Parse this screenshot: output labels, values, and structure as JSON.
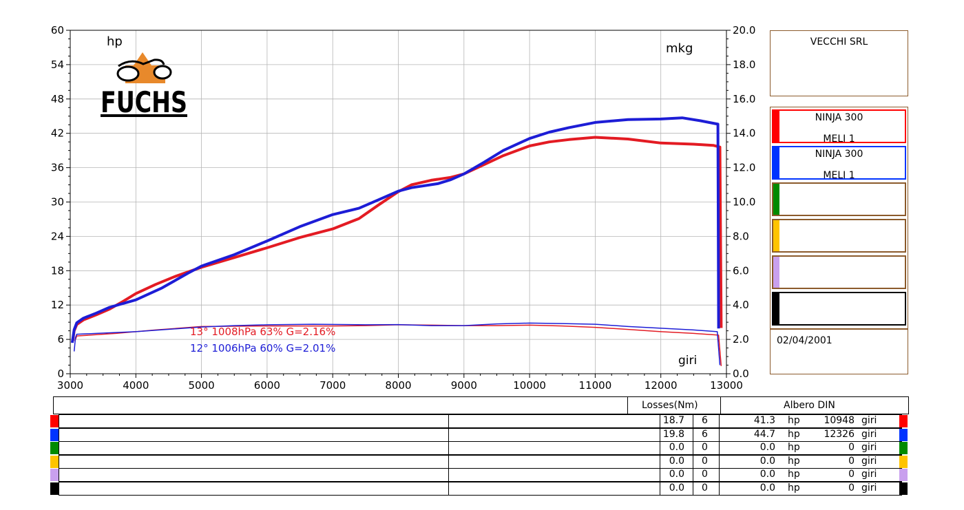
{
  "chart_data": {
    "type": "line",
    "x_range": [
      3000,
      13000
    ],
    "y_left_range": [
      0,
      60
    ],
    "y_right_range": [
      0,
      20
    ],
    "x_ticks": [
      "3000",
      "4000",
      "5000",
      "6000",
      "7000",
      "8000",
      "9000",
      "10000",
      "11000",
      "12000",
      "13000"
    ],
    "y_left_ticks": [
      "0",
      "6",
      "12",
      "18",
      "24",
      "30",
      "36",
      "42",
      "48",
      "54",
      "60"
    ],
    "y_right_ticks": [
      "0.0",
      "2.0",
      "4.0",
      "6.0",
      "8.0",
      "10.0",
      "12.0",
      "14.0",
      "16.0",
      "18.0",
      "20.0"
    ],
    "ylabel_left": "hp",
    "ylabel_right": "mkg",
    "xlabel": "giri",
    "grid": true,
    "series": [
      {
        "color": "#e31b23",
        "kind": "power",
        "points": [
          [
            3040,
            5.8
          ],
          [
            3060,
            7.5
          ],
          [
            3100,
            8.6
          ],
          [
            3200,
            9.4
          ],
          [
            3400,
            10.3
          ],
          [
            3600,
            11.3
          ],
          [
            3800,
            12.6
          ],
          [
            4000,
            14.0
          ],
          [
            4300,
            15.6
          ],
          [
            4600,
            17.0
          ],
          [
            5000,
            18.6
          ],
          [
            5500,
            20.3
          ],
          [
            6000,
            22.0
          ],
          [
            6500,
            23.8
          ],
          [
            7000,
            25.3
          ],
          [
            7400,
            27.1
          ],
          [
            7700,
            29.5
          ],
          [
            8000,
            31.8
          ],
          [
            8200,
            33.0
          ],
          [
            8500,
            33.8
          ],
          [
            8800,
            34.3
          ],
          [
            9000,
            34.9
          ],
          [
            9300,
            36.5
          ],
          [
            9600,
            38.1
          ],
          [
            10000,
            39.8
          ],
          [
            10300,
            40.5
          ],
          [
            10600,
            40.9
          ],
          [
            11000,
            41.3
          ],
          [
            11500,
            41.0
          ],
          [
            12000,
            40.3
          ],
          [
            12500,
            40.1
          ],
          [
            12800,
            39.9
          ],
          [
            12900,
            39.6
          ],
          [
            12920,
            8.0
          ]
        ]
      },
      {
        "color": "#1d1dd6",
        "kind": "power",
        "points": [
          [
            3030,
            5.4
          ],
          [
            3060,
            7.7
          ],
          [
            3100,
            8.9
          ],
          [
            3200,
            9.7
          ],
          [
            3400,
            10.6
          ],
          [
            3600,
            11.6
          ],
          [
            4000,
            12.9
          ],
          [
            4400,
            15.0
          ],
          [
            4800,
            17.6
          ],
          [
            5000,
            18.8
          ],
          [
            5500,
            20.8
          ],
          [
            6000,
            23.2
          ],
          [
            6500,
            25.7
          ],
          [
            7000,
            27.8
          ],
          [
            7400,
            28.9
          ],
          [
            7700,
            30.4
          ],
          [
            8000,
            31.9
          ],
          [
            8200,
            32.5
          ],
          [
            8600,
            33.2
          ],
          [
            8800,
            33.9
          ],
          [
            9000,
            34.9
          ],
          [
            9300,
            36.9
          ],
          [
            9600,
            39.0
          ],
          [
            10000,
            41.1
          ],
          [
            10300,
            42.2
          ],
          [
            10600,
            43.0
          ],
          [
            11000,
            43.9
          ],
          [
            11500,
            44.4
          ],
          [
            12000,
            44.5
          ],
          [
            12326,
            44.7
          ],
          [
            12600,
            44.2
          ],
          [
            12870,
            43.6
          ],
          [
            12880,
            7.9
          ]
        ]
      },
      {
        "color": "#e31b23",
        "kind": "torque",
        "points": [
          [
            3070,
            1.9
          ],
          [
            3100,
            2.2
          ],
          [
            3300,
            2.25
          ],
          [
            3700,
            2.35
          ],
          [
            4300,
            2.55
          ],
          [
            5000,
            2.75
          ],
          [
            6000,
            2.78
          ],
          [
            7000,
            2.78
          ],
          [
            7500,
            2.8
          ],
          [
            8000,
            2.85
          ],
          [
            8500,
            2.83
          ],
          [
            9000,
            2.8
          ],
          [
            9500,
            2.8
          ],
          [
            10000,
            2.83
          ],
          [
            10500,
            2.78
          ],
          [
            11000,
            2.7
          ],
          [
            11500,
            2.58
          ],
          [
            12000,
            2.45
          ],
          [
            12500,
            2.35
          ],
          [
            12880,
            2.25
          ],
          [
            12920,
            0.45
          ]
        ]
      },
      {
        "color": "#1d1dd6",
        "kind": "torque",
        "points": [
          [
            3060,
            1.3
          ],
          [
            3080,
            2.1
          ],
          [
            3100,
            2.3
          ],
          [
            3400,
            2.35
          ],
          [
            4000,
            2.45
          ],
          [
            5000,
            2.72
          ],
          [
            5500,
            2.8
          ],
          [
            6000,
            2.85
          ],
          [
            6700,
            2.88
          ],
          [
            7500,
            2.85
          ],
          [
            8000,
            2.86
          ],
          [
            8500,
            2.8
          ],
          [
            9000,
            2.8
          ],
          [
            9500,
            2.9
          ],
          [
            10000,
            2.95
          ],
          [
            10500,
            2.92
          ],
          [
            11000,
            2.88
          ],
          [
            11500,
            2.75
          ],
          [
            12000,
            2.65
          ],
          [
            12500,
            2.55
          ],
          [
            12860,
            2.45
          ],
          [
            12900,
            0.5
          ]
        ]
      }
    ],
    "annotations": [
      {
        "text": "13°  1008hPa  63%    G=2.16%",
        "color": "#e31b23"
      },
      {
        "text": "12°  1006hPa  60%    G=2.01%",
        "color": "#1d1dd6"
      }
    ]
  },
  "logo": {
    "text": "FUCHS"
  },
  "side_panel": {
    "company": "VECCHI SRL",
    "date": "02/04/2001",
    "legend": [
      {
        "color": "#ff0000",
        "line1": "NINJA 300",
        "line2": "MELI 1"
      },
      {
        "color": "#0033ff",
        "line1": "NINJA 300",
        "line2": "MELI 1"
      },
      {
        "color": "#008a00",
        "line1": "",
        "line2": ""
      },
      {
        "color": "#ffc400",
        "line1": "",
        "line2": ""
      },
      {
        "color": "#c9a0ee",
        "line1": "",
        "line2": ""
      },
      {
        "color": "#000000",
        "line1": "",
        "line2": ""
      }
    ]
  },
  "table": {
    "losses_header": "Losses(Nm)",
    "albero_header": "Albero DIN",
    "rows": [
      {
        "color": "#ff0000",
        "loss": "18.7",
        "n": "6",
        "hp": "41.3",
        "hp_unit": "hp",
        "rpm": "10948",
        "rpm_unit": "giri"
      },
      {
        "color": "#0033ff",
        "loss": "19.8",
        "n": "6",
        "hp": "44.7",
        "hp_unit": "hp",
        "rpm": "12326",
        "rpm_unit": "giri"
      },
      {
        "color": "#008a00",
        "loss": "0.0",
        "n": "0",
        "hp": "0.0",
        "hp_unit": "hp",
        "rpm": "0",
        "rpm_unit": "giri"
      },
      {
        "color": "#ffc400",
        "loss": "0.0",
        "n": "0",
        "hp": "0.0",
        "hp_unit": "hp",
        "rpm": "0",
        "rpm_unit": "giri"
      },
      {
        "color": "#c9a0ee",
        "loss": "0.0",
        "n": "0",
        "hp": "0.0",
        "hp_unit": "hp",
        "rpm": "0",
        "rpm_unit": "giri"
      },
      {
        "color": "#000000",
        "loss": "0.0",
        "n": "0",
        "hp": "0.0",
        "hp_unit": "hp",
        "rpm": "0",
        "rpm_unit": "giri"
      }
    ]
  }
}
